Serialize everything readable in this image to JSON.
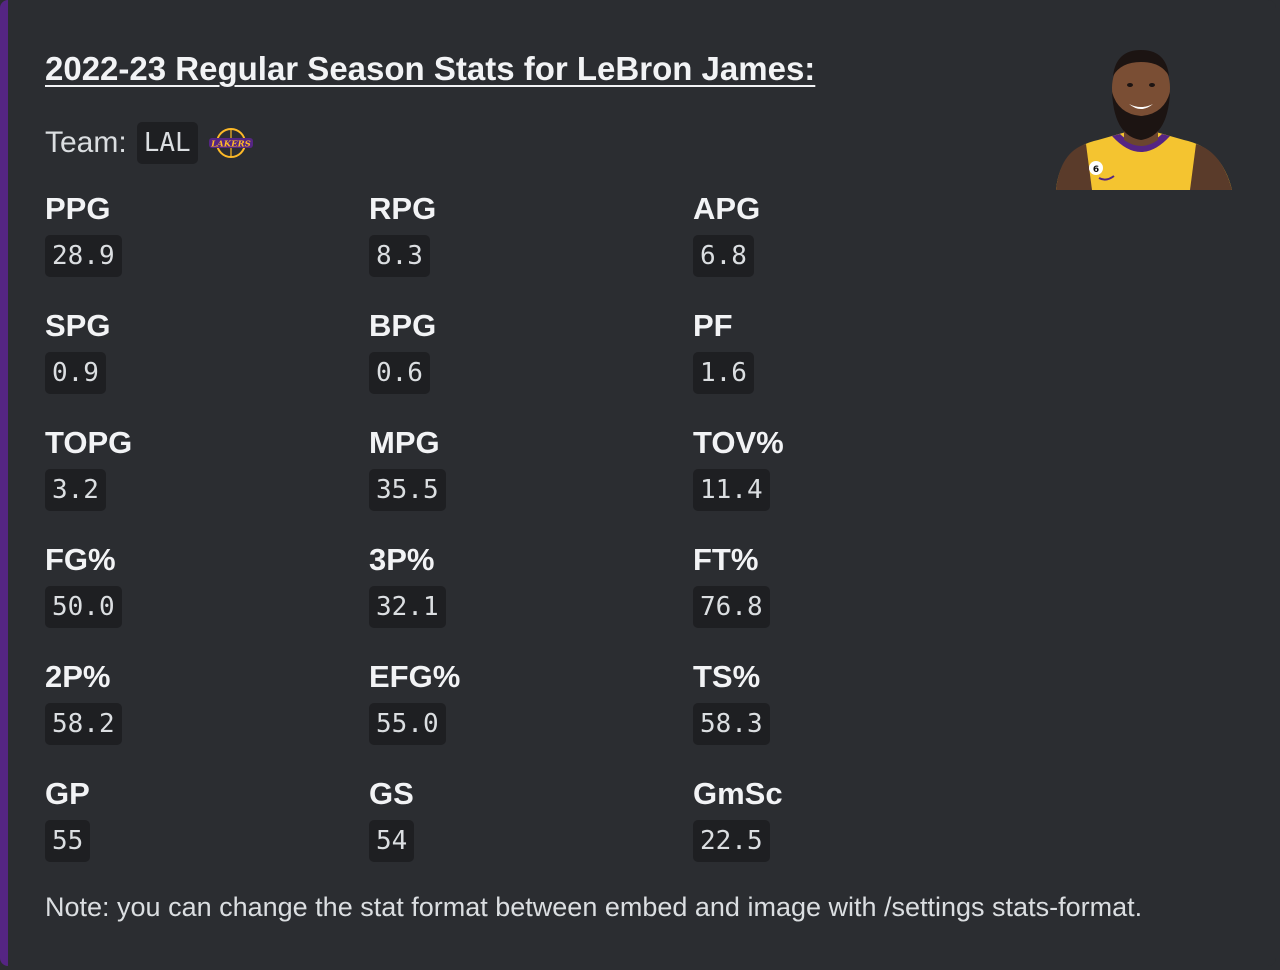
{
  "embed": {
    "accent_color": "#552583",
    "title": "2022-23 Regular Season Stats for LeBron James:",
    "team_label": "Team:",
    "team_code": "LAL",
    "team_logo_icon": "lakers-logo-icon",
    "thumbnail_icon": "player-headshot",
    "note": "Note: you can change the stat format between embed and image with /settings stats-format."
  },
  "stats": [
    {
      "name": "PPG",
      "value": "28.9"
    },
    {
      "name": "RPG",
      "value": "8.3"
    },
    {
      "name": "APG",
      "value": "6.8"
    },
    {
      "name": "SPG",
      "value": "0.9"
    },
    {
      "name": "BPG",
      "value": "0.6"
    },
    {
      "name": "PF",
      "value": "1.6"
    },
    {
      "name": "TOPG",
      "value": "3.2"
    },
    {
      "name": "MPG",
      "value": "35.5"
    },
    {
      "name": "TOV%",
      "value": "11.4"
    },
    {
      "name": "FG%",
      "value": "50.0"
    },
    {
      "name": "3P%",
      "value": "32.1"
    },
    {
      "name": "FT%",
      "value": "76.8"
    },
    {
      "name": "2P%",
      "value": "58.2"
    },
    {
      "name": "EFG%",
      "value": "55.0"
    },
    {
      "name": "TS%",
      "value": "58.3"
    },
    {
      "name": "GP",
      "value": "55"
    },
    {
      "name": "GS",
      "value": "54"
    },
    {
      "name": "GmSc",
      "value": "22.5"
    }
  ]
}
